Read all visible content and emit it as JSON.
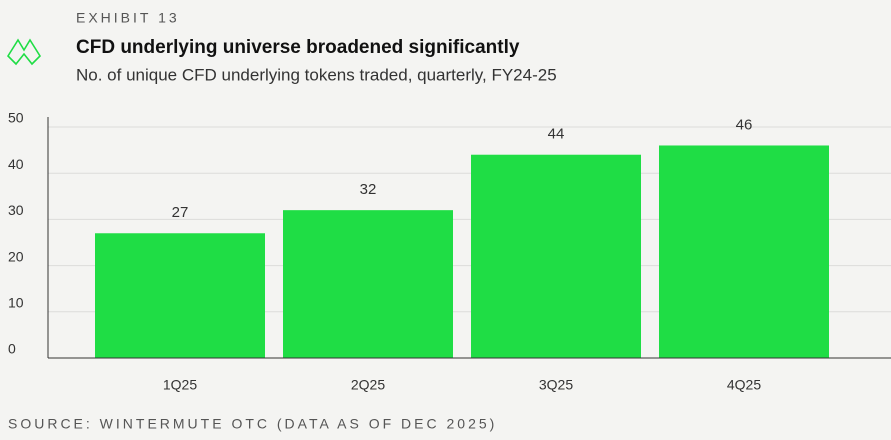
{
  "header": {
    "exhibit": "EXHIBIT 13"
  },
  "chart_data": {
    "type": "bar",
    "title": "CFD underlying universe broadened significantly",
    "subtitle": "No. of unique CFD underlying tokens traded, quarterly, FY24-25",
    "categories": [
      "1Q25",
      "2Q25",
      "3Q25",
      "4Q25"
    ],
    "values": [
      27,
      32,
      44,
      46
    ],
    "color": "#1fdd45",
    "ylim": [
      0,
      50
    ],
    "yticks": [
      0,
      10,
      20,
      30,
      40,
      50
    ],
    "grid": true,
    "source": "SOURCE: WINTERMUTE OTC (DATA AS OF DEC 2025)"
  }
}
